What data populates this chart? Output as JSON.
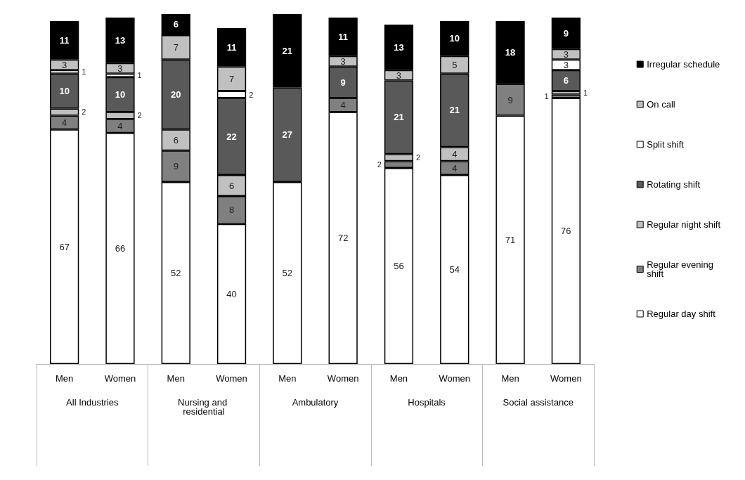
{
  "chart_data": {
    "type": "bar",
    "stacked": true,
    "legend": "right",
    "categories": [
      "Men",
      "Women",
      "Men",
      "Women",
      "Men",
      "Women",
      "Men",
      "Women",
      "Men",
      "Women"
    ],
    "annotations": [
      "All Industries",
      "Nursing and residential",
      "Ambulatory",
      "Hospitals",
      "Social assistance"
    ],
    "series": [
      {
        "name": "Regular day shift",
        "color": "#ffffff",
        "values": [
          67,
          66,
          52,
          40,
          52,
          72,
          56,
          54,
          71,
          76
        ],
        "value_labels": [
          "67",
          "66",
          "52",
          "40",
          "52",
          "72",
          "56",
          "54",
          "71",
          "76"
        ]
      },
      {
        "name": "Regular evening shift",
        "color": "#808080",
        "values": [
          4,
          4,
          9,
          8,
          0,
          4,
          2,
          4,
          9,
          1
        ],
        "value_labels": [
          "4",
          "4",
          "9",
          "8",
          null,
          "4",
          "2",
          "4",
          "9",
          "1"
        ]
      },
      {
        "name": "Regular night shift",
        "color": "#c0c0c0",
        "values": [
          2,
          2,
          6,
          6,
          0,
          0,
          2,
          4,
          0,
          1
        ],
        "value_labels": [
          "2",
          "2",
          "6",
          "6",
          null,
          null,
          "2",
          "4",
          null,
          "1"
        ]
      },
      {
        "name": "Rotating shift",
        "color": "#595959",
        "values": [
          10,
          10,
          20,
          22,
          27,
          9,
          21,
          21,
          0,
          6
        ],
        "value_labels": [
          "10",
          "10",
          "20",
          "22",
          "27",
          "9",
          "21",
          "21",
          null,
          "6"
        ]
      },
      {
        "name": "Split shift",
        "color": "#ffffff",
        "values": [
          1,
          1,
          0,
          2,
          0,
          0,
          0,
          0,
          0,
          3
        ],
        "value_labels": [
          "1",
          "1",
          null,
          "2",
          null,
          null,
          null,
          null,
          null,
          "3"
        ]
      },
      {
        "name": "On call",
        "color": "#c0c0c0",
        "values": [
          3,
          3,
          7,
          7,
          0,
          3,
          3,
          5,
          0,
          3
        ],
        "value_labels": [
          "3",
          "3",
          "7",
          "7",
          null,
          "3",
          "3",
          "5",
          null,
          "3"
        ]
      },
      {
        "name": "Irregular schedule",
        "color": "#000000",
        "values": [
          11,
          13,
          6,
          11,
          21,
          11,
          13,
          10,
          18,
          9
        ],
        "value_labels": [
          "11",
          "13",
          "6",
          "11",
          "21",
          "11",
          "13",
          "10",
          "18",
          "9"
        ]
      }
    ]
  }
}
